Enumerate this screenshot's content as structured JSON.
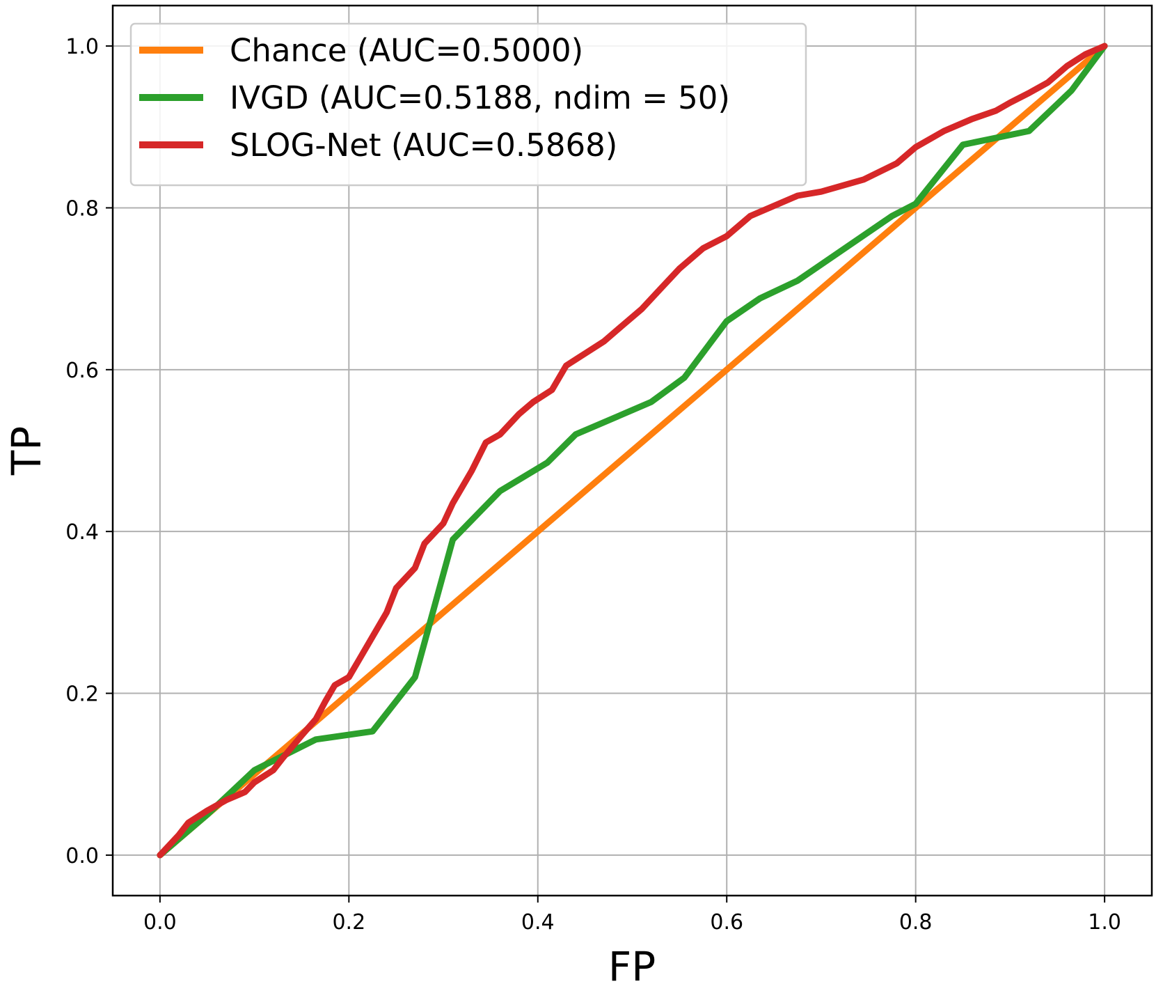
{
  "chart_data": {
    "type": "line",
    "title": "",
    "xlabel": "FP",
    "ylabel": "TP",
    "xlim": [
      -0.05,
      1.05
    ],
    "ylim": [
      -0.05,
      1.05
    ],
    "xticks": [
      0.0,
      0.2,
      0.4,
      0.6,
      0.8,
      1.0
    ],
    "yticks": [
      0.0,
      0.2,
      0.4,
      0.6,
      0.8,
      1.0
    ],
    "xtick_labels": [
      "0.0",
      "0.2",
      "0.4",
      "0.6",
      "0.8",
      "1.0"
    ],
    "ytick_labels": [
      "0.0",
      "0.2",
      "0.4",
      "0.6",
      "0.8",
      "1.0"
    ],
    "grid": true,
    "legend_position": "top-left",
    "series": [
      {
        "name": "Chance (AUC=0.5000)",
        "color": "#ff7f0e",
        "x": [
          0.0,
          1.0
        ],
        "y": [
          0.0,
          1.0
        ]
      },
      {
        "name": "IVGD (AUC=0.5188, ndim = 50)",
        "color": "#2ca02c",
        "x": [
          0.0,
          0.05,
          0.1,
          0.165,
          0.225,
          0.27,
          0.31,
          0.36,
          0.41,
          0.44,
          0.52,
          0.555,
          0.6,
          0.635,
          0.675,
          0.775,
          0.8,
          0.85,
          0.92,
          0.965,
          1.0
        ],
        "y": [
          0.0,
          0.05,
          0.105,
          0.143,
          0.153,
          0.22,
          0.39,
          0.45,
          0.485,
          0.52,
          0.56,
          0.59,
          0.66,
          0.688,
          0.71,
          0.79,
          0.805,
          0.878,
          0.895,
          0.945,
          1.0
        ]
      },
      {
        "name": "SLOG-Net (AUC=0.5868)",
        "color": "#d62728",
        "x": [
          0.0,
          0.02,
          0.03,
          0.05,
          0.07,
          0.09,
          0.1,
          0.12,
          0.13,
          0.15,
          0.165,
          0.175,
          0.185,
          0.2,
          0.21,
          0.225,
          0.24,
          0.25,
          0.27,
          0.28,
          0.3,
          0.31,
          0.33,
          0.345,
          0.36,
          0.38,
          0.395,
          0.415,
          0.43,
          0.45,
          0.47,
          0.49,
          0.51,
          0.53,
          0.55,
          0.575,
          0.6,
          0.625,
          0.645,
          0.675,
          0.7,
          0.745,
          0.78,
          0.8,
          0.83,
          0.86,
          0.885,
          0.9,
          0.92,
          0.94,
          0.96,
          0.98,
          1.0
        ],
        "y": [
          0.0,
          0.025,
          0.04,
          0.055,
          0.068,
          0.078,
          0.09,
          0.105,
          0.12,
          0.148,
          0.168,
          0.19,
          0.21,
          0.22,
          0.24,
          0.27,
          0.3,
          0.33,
          0.355,
          0.385,
          0.41,
          0.435,
          0.475,
          0.51,
          0.52,
          0.545,
          0.56,
          0.575,
          0.605,
          0.62,
          0.635,
          0.655,
          0.675,
          0.7,
          0.725,
          0.75,
          0.765,
          0.79,
          0.8,
          0.815,
          0.82,
          0.835,
          0.855,
          0.875,
          0.895,
          0.91,
          0.92,
          0.93,
          0.942,
          0.955,
          0.975,
          0.99,
          1.0
        ]
      }
    ]
  }
}
